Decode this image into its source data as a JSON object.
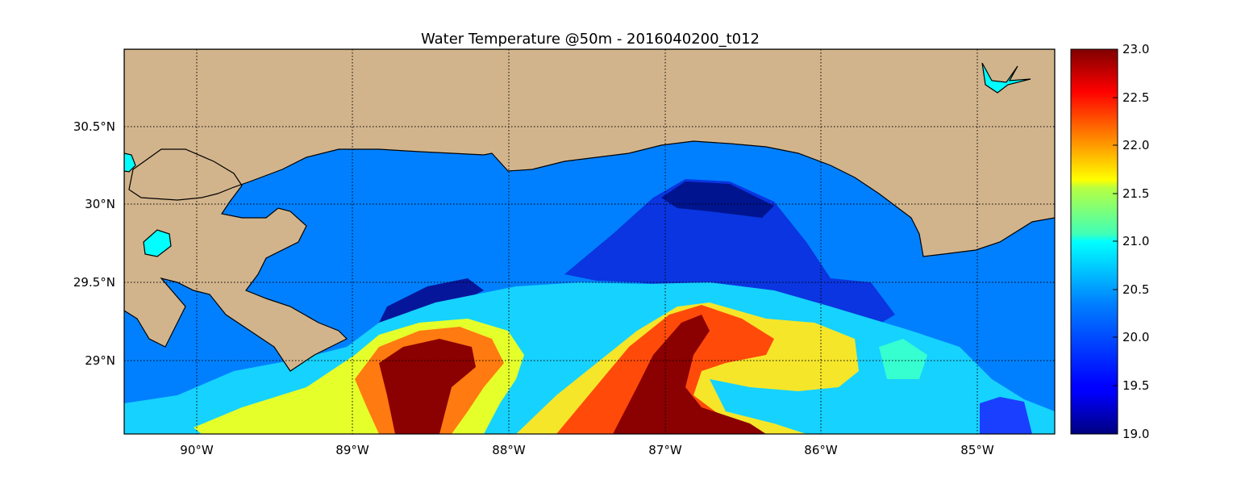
{
  "title": "Water Temperature @50m - 2016040200_t012",
  "map": {
    "lon_range": [
      -90.5,
      -84.5
    ],
    "lat_range": [
      28.55,
      31.0
    ],
    "lon_ticks": [
      -90,
      -89,
      -88,
      -87,
      -86,
      -85
    ],
    "lon_tick_labels": [
      "90°W",
      "89°W",
      "88°W",
      "87°W",
      "86°W",
      "85°W"
    ],
    "lat_ticks": [
      29.0,
      29.5,
      30.0,
      30.5
    ],
    "lat_tick_labels": [
      "29°N",
      "29.5°N",
      "30°N",
      "30.5°N"
    ],
    "gridlines": "dotted",
    "land_color": "#d2b48c",
    "ocean_color": "#0080ff",
    "lake_color": "#00ffff"
  },
  "colorbar": {
    "min": 19.0,
    "max": 23.0,
    "colormap": "jet",
    "tick_values": [
      19.0,
      19.5,
      20.0,
      20.5,
      21.0,
      21.5,
      22.0,
      22.5,
      23.0
    ],
    "tick_labels": [
      "19.0",
      "19.5",
      "20.0",
      "20.5",
      "21.0",
      "21.5",
      "22.0",
      "22.5",
      "23.0"
    ]
  }
}
